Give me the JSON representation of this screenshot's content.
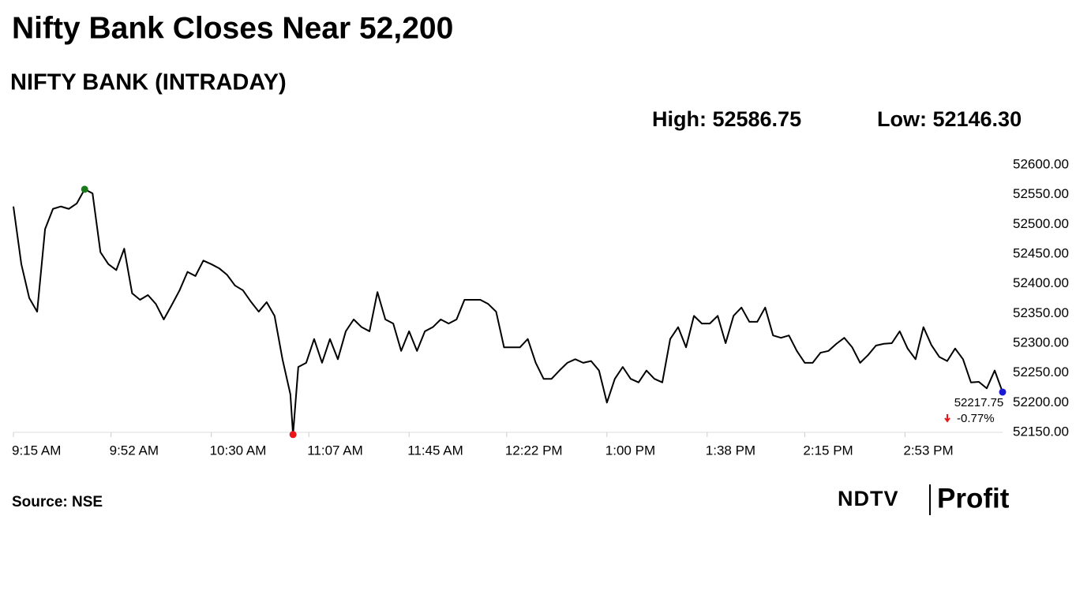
{
  "chart_data": {
    "type": "line",
    "title": "Nifty Bank Closes Near 52,200",
    "subtitle": "NIFTY BANK (INTRADAY)",
    "high_text": "High: 52586.75",
    "low_text": "Low: 52146.30",
    "source": "Source: NSE",
    "brand": {
      "left": "NDTV",
      "right": "Profit"
    },
    "color": "#000000",
    "x": [
      "09:15",
      "09:18",
      "09:21",
      "09:24",
      "09:27",
      "09:30",
      "09:33",
      "09:36",
      "09:39",
      "09:42",
      "09:45",
      "09:48",
      "09:51",
      "09:54",
      "09:57",
      "10:00",
      "10:03",
      "10:06",
      "10:09",
      "10:12",
      "10:15",
      "10:18",
      "10:21",
      "10:24",
      "10:27",
      "10:30",
      "10:33",
      "10:36",
      "10:39",
      "10:42",
      "10:45",
      "10:48",
      "10:51",
      "10:54",
      "10:57",
      "11:00",
      "11:01",
      "11:03",
      "11:06",
      "11:09",
      "11:12",
      "11:15",
      "11:18",
      "11:21",
      "11:24",
      "11:27",
      "11:30",
      "11:33",
      "11:36",
      "11:39",
      "11:42",
      "11:45",
      "11:48",
      "11:51",
      "11:54",
      "11:57",
      "12:00",
      "12:03",
      "12:06",
      "12:09",
      "12:12",
      "12:15",
      "12:18",
      "12:21",
      "12:24",
      "12:27",
      "12:30",
      "12:33",
      "12:36",
      "12:39",
      "12:42",
      "12:45",
      "12:48",
      "12:51",
      "12:54",
      "12:57",
      "13:00",
      "13:03",
      "13:06",
      "13:09",
      "13:12",
      "13:15",
      "13:18",
      "13:21",
      "13:24",
      "13:27",
      "13:30",
      "13:33",
      "13:36",
      "13:39",
      "13:42",
      "13:45",
      "13:48",
      "13:51",
      "13:54",
      "13:57",
      "14:00",
      "14:03",
      "14:06",
      "14:09",
      "14:12",
      "14:15",
      "14:18",
      "14:21",
      "14:24",
      "14:27",
      "14:30",
      "14:33",
      "14:36",
      "14:39",
      "14:42",
      "14:45",
      "14:48",
      "14:51",
      "14:54",
      "14:57",
      "15:00",
      "15:03",
      "15:06",
      "15:09",
      "15:12",
      "15:15",
      "15:18",
      "15:21",
      "15:24",
      "15:27",
      "15:30"
    ],
    "values": [
      52530,
      52433,
      52376,
      52353,
      52492,
      52526,
      52530,
      52526,
      52535,
      52559,
      52552,
      52453,
      52433,
      52423,
      52459,
      52384,
      52373,
      52381,
      52366,
      52340,
      52364,
      52389,
      52420,
      52413,
      52439,
      52433,
      52426,
      52415,
      52397,
      52389,
      52370,
      52353,
      52369,
      52346,
      52273,
      52214,
      52146.3,
      52260,
      52267,
      52307,
      52267,
      52307,
      52273,
      52320,
      52340,
      52327,
      52320,
      52386,
      52340,
      52333,
      52287,
      52320,
      52287,
      52320,
      52327,
      52340,
      52333,
      52340,
      52373,
      52373,
      52373,
      52366,
      52353,
      52293,
      52293,
      52293,
      52307,
      52267,
      52240,
      52240,
      52254,
      52267,
      52273,
      52267,
      52270,
      52254,
      52200,
      52240,
      52260,
      52240,
      52234,
      52254,
      52240,
      52234,
      52307,
      52327,
      52293,
      52346,
      52333,
      52333,
      52346,
      52300,
      52346,
      52360,
      52336,
      52336,
      52360,
      52313,
      52309,
      52313,
      52287,
      52267,
      52267,
      52284,
      52287,
      52299,
      52309,
      52293,
      52267,
      52280,
      52296,
      52299,
      52300,
      52320,
      52291,
      52273,
      52327,
      52297,
      52277,
      52270,
      52291,
      52273,
      52234,
      52235,
      52224,
      52254,
      52217.75
    ],
    "points": [
      {
        "x": "09:42",
        "value": 52559,
        "color": "#1a7a1a"
      },
      {
        "x": "11:01",
        "value": 52146.3,
        "color": "#e8161b"
      },
      {
        "x": "15:30",
        "value": 52217.75,
        "color": "#1b1bd6"
      }
    ],
    "last_value": 52217.75,
    "change": {
      "value": -0.77,
      "label": "-0.77%"
    },
    "change_color": "#e8161b",
    "xlim": [
      "09:15",
      "15:30"
    ],
    "xticks": [
      {
        "value": "09:15",
        "label": "9:15 AM"
      },
      {
        "value": "09:52",
        "label": "9:52 AM"
      },
      {
        "value": "10:30",
        "label": "10:30 AM"
      },
      {
        "value": "11:07",
        "label": "11:07 AM"
      },
      {
        "value": "11:45",
        "label": "11:45 AM"
      },
      {
        "value": "12:22",
        "label": "12:22 PM"
      },
      {
        "value": "13:00",
        "label": "1:00 PM"
      },
      {
        "value": "13:38",
        "label": "1:38 PM"
      },
      {
        "value": "14:15",
        "label": "2:15 PM"
      },
      {
        "value": "14:53",
        "label": "2:53 PM"
      }
    ],
    "ylim": [
      52150,
      52600
    ],
    "yticks": [
      {
        "value": 52600,
        "label": "52600.00"
      },
      {
        "value": 52550,
        "label": "52550.00"
      },
      {
        "value": 52500,
        "label": "52500.00"
      },
      {
        "value": 52450,
        "label": "52450.00"
      },
      {
        "value": 52400,
        "label": "52400.00"
      },
      {
        "value": 52350,
        "label": "52350.00"
      },
      {
        "value": 52300,
        "label": "52300.00"
      },
      {
        "value": 52250,
        "label": "52250.00"
      },
      {
        "value": 52200,
        "label": "52200.00"
      },
      {
        "value": 52150,
        "label": "52150.00"
      }
    ],
    "grid": false
  }
}
